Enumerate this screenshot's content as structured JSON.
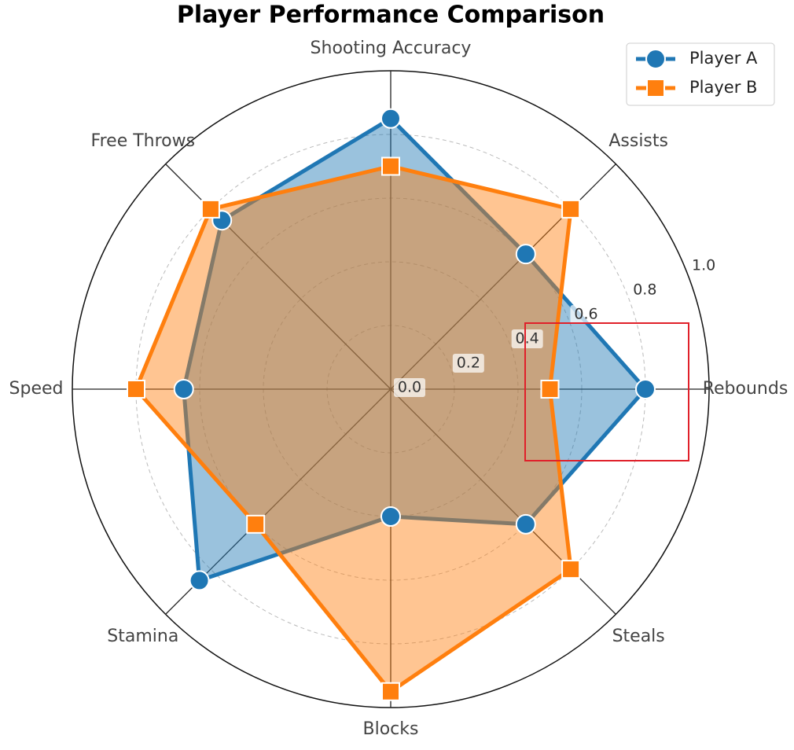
{
  "chart_data": {
    "type": "radar",
    "title": "Player Performance Comparison",
    "categories": [
      "Shooting Accuracy",
      "Assists",
      "Rebounds",
      "Steals",
      "Blocks",
      "Stamina",
      "Speed",
      "Free Throws"
    ],
    "series": [
      {
        "name": "Player A",
        "color": "#1f77b4",
        "marker": "circle",
        "values": [
          0.85,
          0.6,
          0.8,
          0.6,
          0.4,
          0.85,
          0.65,
          0.75
        ]
      },
      {
        "name": "Player B",
        "color": "#ff7f0e",
        "marker": "square",
        "values": [
          0.7,
          0.8,
          0.5,
          0.8,
          0.95,
          0.6,
          0.8,
          0.8
        ]
      }
    ],
    "ylim": [
      0,
      1
    ],
    "yticks": [
      {
        "value": 0,
        "label": "0.0"
      },
      {
        "value": 0.2,
        "label": "0.2"
      },
      {
        "value": 0.4,
        "label": "0.4"
      },
      {
        "value": 0.6,
        "label": "0.6"
      },
      {
        "value": 0.8,
        "label": "0.8"
      },
      {
        "value": 1,
        "label": "1.0"
      }
    ],
    "grid": true,
    "legend": "upper right"
  }
}
